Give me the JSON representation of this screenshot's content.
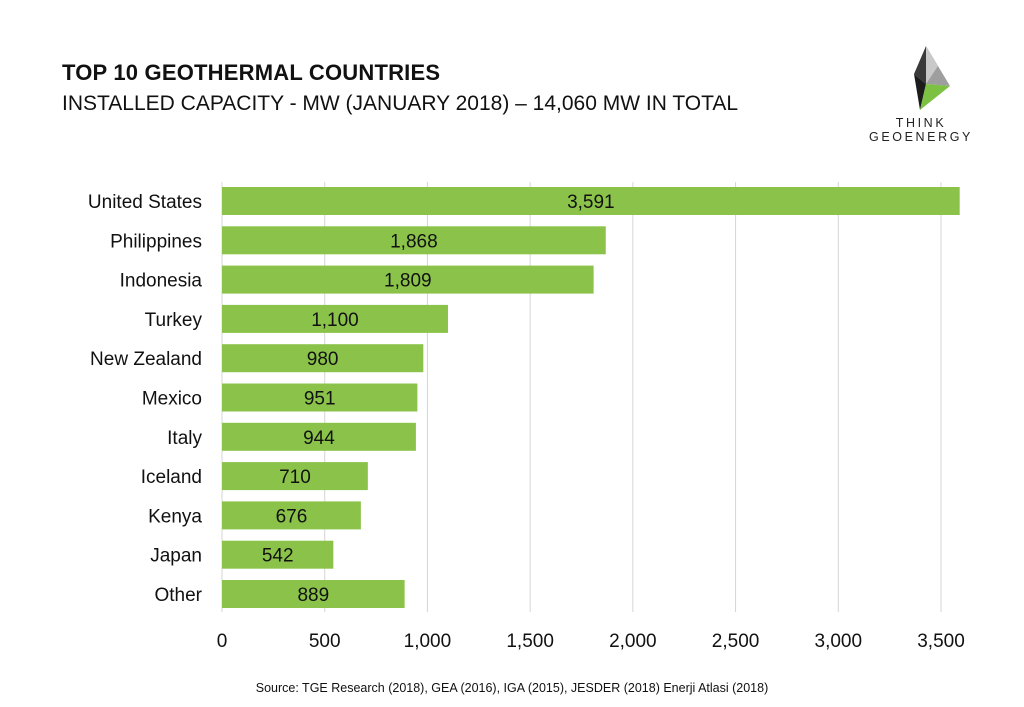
{
  "chart_data": {
    "type": "bar",
    "orientation": "horizontal",
    "title": "TOP 10 GEOTHERMAL COUNTRIES",
    "subtitle": "INSTALLED CAPACITY - MW (JANUARY 2018) – 14,060 MW IN TOTAL",
    "categories": [
      "United States",
      "Philippines",
      "Indonesia",
      "Turkey",
      "New Zealand",
      "Mexico",
      "Italy",
      "Iceland",
      "Kenya",
      "Japan",
      "Other"
    ],
    "values": [
      3591,
      1868,
      1809,
      1100,
      980,
      951,
      944,
      710,
      676,
      542,
      889
    ],
    "value_labels": [
      "3,591",
      "1,868",
      "1,809",
      "1,100",
      "980",
      "951",
      "944",
      "710",
      "676",
      "542",
      "889"
    ],
    "xlim": [
      0,
      3500
    ],
    "xticks": [
      0,
      500,
      1000,
      1500,
      2000,
      2500,
      3000,
      3500
    ],
    "xtick_labels": [
      "0",
      "500",
      "1,000",
      "1,500",
      "2,000",
      "2,500",
      "3,000",
      "3,500"
    ],
    "grid": "vertical",
    "legend": "none",
    "bar_color": "#8bc34a",
    "grid_color": "#d4d4d4"
  },
  "logo": {
    "line1": "THINK",
    "line2": "GEOENERGY"
  },
  "source": "Source: TGE Research (2018), GEA (2016), IGA (2015), JESDER (2018) Enerji Atlasi (2018)"
}
